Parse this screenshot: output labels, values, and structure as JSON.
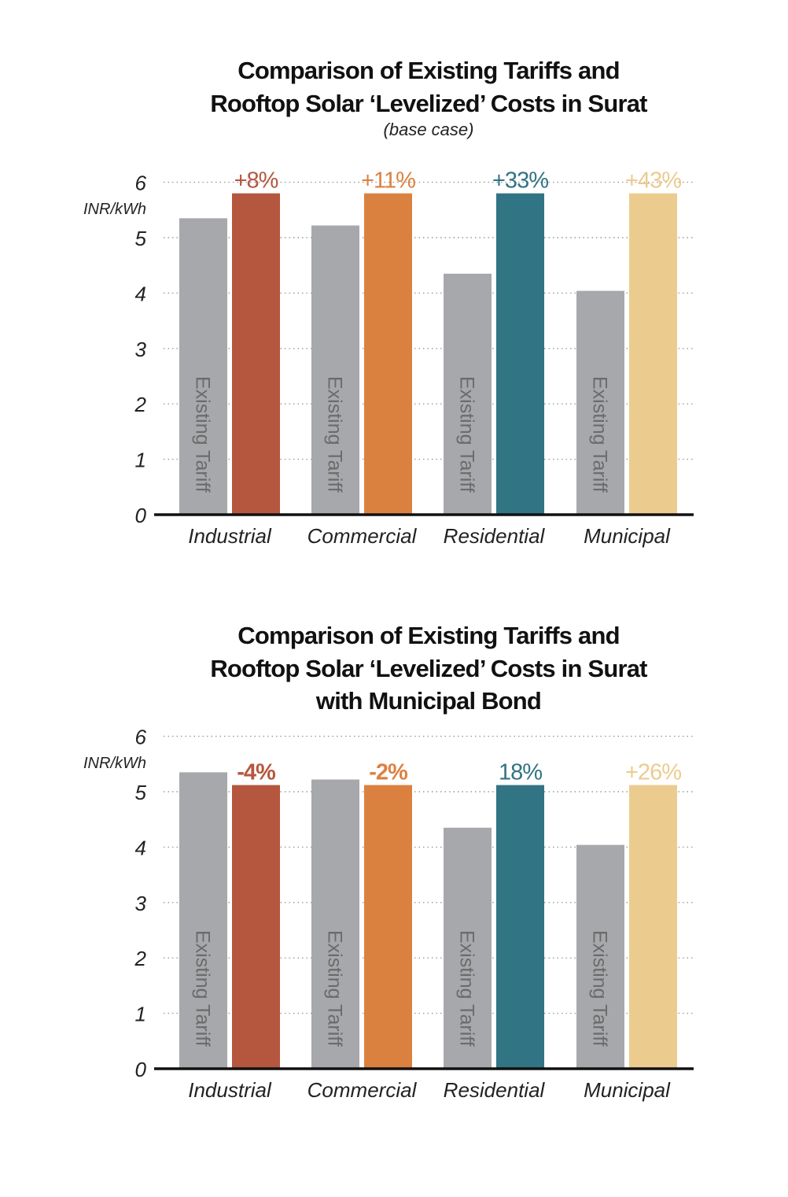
{
  "chart_data": [
    {
      "type": "bar",
      "title_lines": [
        "Comparison of Existing Tariffs and",
        "Rooftop Solar ‘Levelized’ Costs in Surat"
      ],
      "subtitle": "(base case)",
      "ylabel": "INR/kWh",
      "ylim": [
        0,
        6
      ],
      "yticks": [
        "0",
        "1",
        "2",
        "3",
        "4",
        "5",
        "6"
      ],
      "grid": true,
      "categories": [
        "Industrial",
        "Commercial",
        "Residential",
        "Municipal"
      ],
      "series": [
        {
          "name": "Existing Tariff",
          "values": [
            5.35,
            5.22,
            4.35,
            4.04
          ]
        },
        {
          "values": [
            5.8,
            5.8,
            5.8,
            5.8
          ]
        }
      ],
      "bar_labels": [
        "+8%",
        "+11%",
        "+33%",
        "+43%"
      ],
      "bar_label_bold": [
        false,
        false,
        false,
        false
      ],
      "colors": {
        "existing": "#a7a8ab",
        "categories": [
          "#b5573e",
          "#db8140",
          "#317484",
          "#eccb8f"
        ]
      }
    },
    {
      "type": "bar",
      "title_lines": [
        "Comparison of Existing Tariffs and",
        "Rooftop Solar ‘Levelized’ Costs in Surat",
        "with Municipal Bond"
      ],
      "ylabel": "INR/kWh",
      "ylim": [
        0,
        6
      ],
      "yticks": [
        "0",
        "1",
        "2",
        "3",
        "4",
        "5",
        "6"
      ],
      "grid": true,
      "categories": [
        "Industrial",
        "Commercial",
        "Residential",
        "Municipal"
      ],
      "series": [
        {
          "name": "Existing Tariff",
          "values": [
            5.35,
            5.22,
            4.35,
            4.04
          ]
        },
        {
          "values": [
            5.12,
            5.12,
            5.12,
            5.12
          ]
        }
      ],
      "bar_labels": [
        "-4%",
        "-2%",
        "18%",
        "+26%"
      ],
      "bar_label_bold": [
        true,
        true,
        false,
        false
      ],
      "colors": {
        "existing": "#a7a8ab",
        "categories": [
          "#b5573e",
          "#db8140",
          "#317484",
          "#eccb8f"
        ]
      }
    }
  ]
}
